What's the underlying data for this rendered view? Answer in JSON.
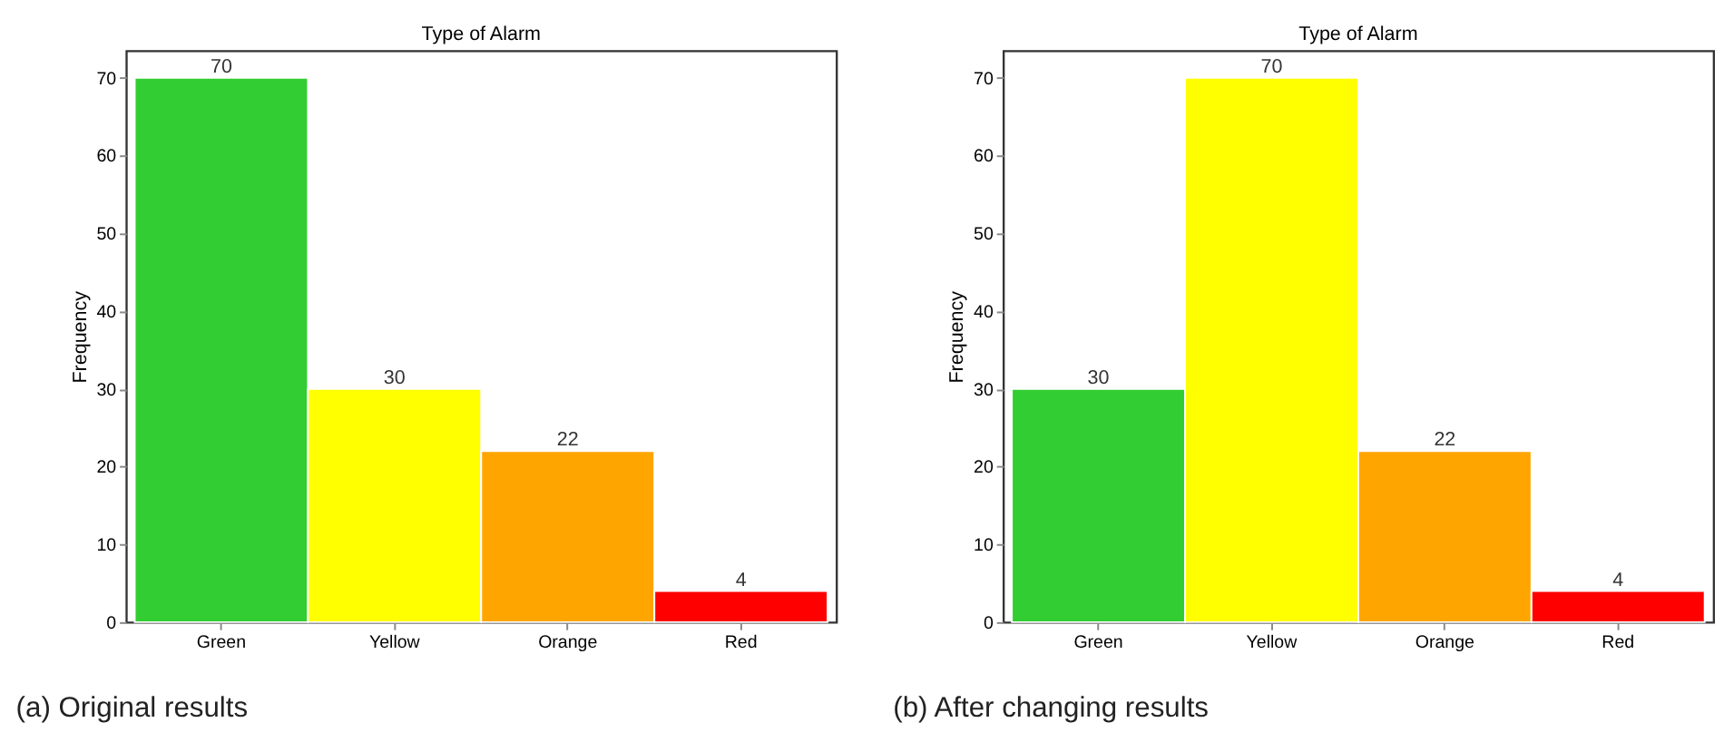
{
  "chart_data": [
    {
      "type": "bar",
      "title": "Type of Alarm",
      "ylabel": "Frequency",
      "categories": [
        "Green",
        "Yellow",
        "Orange",
        "Red"
      ],
      "values": [
        70,
        30,
        22,
        4
      ],
      "colors": [
        "#32cd32",
        "#ffff00",
        "#ffa500",
        "#ff0000"
      ],
      "ylim": [
        0,
        73.5
      ],
      "yticks": [
        0,
        10,
        20,
        30,
        40,
        50,
        60,
        70
      ],
      "grid": false,
      "data_labels": true,
      "annotations": [
        "(a) Original results"
      ]
    },
    {
      "type": "bar",
      "title": "Type of Alarm",
      "ylabel": "Frequency",
      "categories": [
        "Green",
        "Yellow",
        "Orange",
        "Red"
      ],
      "values": [
        30,
        70,
        22,
        4
      ],
      "colors": [
        "#32cd32",
        "#ffff00",
        "#ffa500",
        "#ff0000"
      ],
      "ylim": [
        0,
        73.5
      ],
      "yticks": [
        0,
        10,
        20,
        30,
        40,
        50,
        60,
        70
      ],
      "grid": false,
      "data_labels": true,
      "annotations": [
        "(b) After changing results"
      ]
    }
  ]
}
